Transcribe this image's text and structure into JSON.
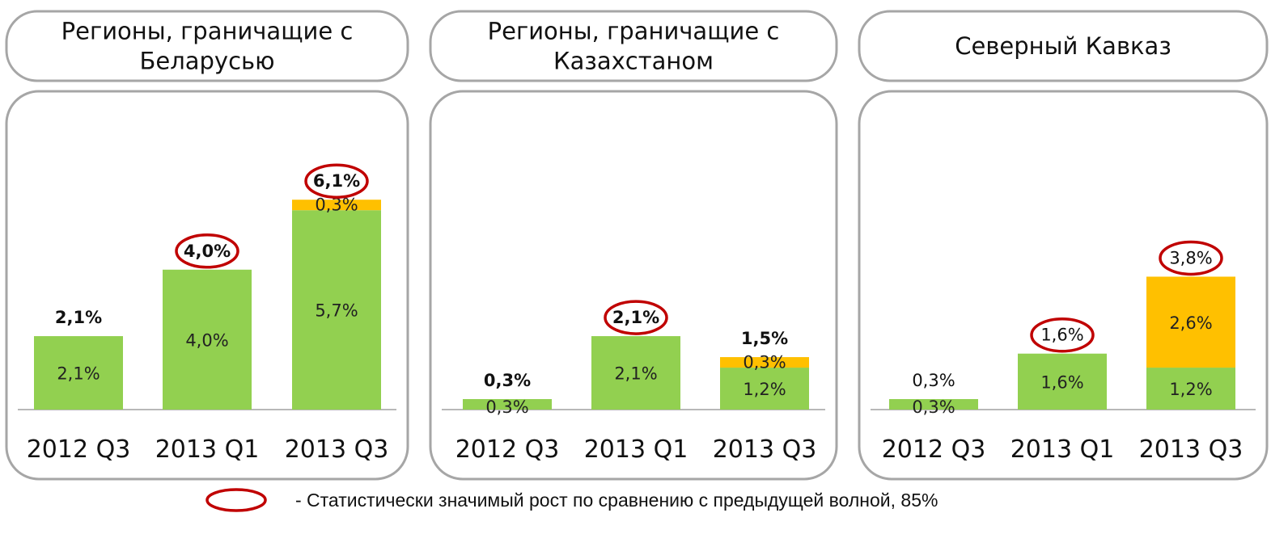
{
  "legend_text": "- Статистически значимый рост по сравнению с предыдущей волной, 85%",
  "colors": {
    "green": "#92D050",
    "orange": "#FFC000",
    "circle": "#C00000",
    "frame": "#A6A6A6"
  },
  "chart_data": [
    {
      "type": "bar",
      "stacked": true,
      "title_lines": [
        "Регионы, граничащие с",
        "Беларусью"
      ],
      "categories": [
        "2012 Q3",
        "2013 Q1",
        "2013 Q3"
      ],
      "ylim": [
        0,
        7
      ],
      "series": [
        {
          "color": "green",
          "values": [
            2.1,
            4.0,
            5.7
          ],
          "labels": [
            "2,1%",
            "4,0%",
            "5,7%"
          ]
        },
        {
          "color": "orange",
          "values": [
            0,
            0,
            0.3
          ],
          "labels": [
            "",
            "",
            "0,3%"
          ]
        }
      ],
      "totals": [
        "2,1%",
        "4,0%",
        "6,1%"
      ],
      "totals_bold": [
        true,
        true,
        true
      ],
      "significant": [
        false,
        true,
        true
      ]
    },
    {
      "type": "bar",
      "stacked": true,
      "title_lines": [
        "Регионы, граничащие с",
        "Казахстаном"
      ],
      "categories": [
        "2012 Q3",
        "2013 Q1",
        "2013 Q3"
      ],
      "ylim": [
        0,
        7
      ],
      "series": [
        {
          "color": "green",
          "values": [
            0.3,
            2.1,
            1.2
          ],
          "labels": [
            "0,3%",
            "2,1%",
            "1,2%"
          ]
        },
        {
          "color": "orange",
          "values": [
            0,
            0,
            0.3
          ],
          "labels": [
            "",
            "",
            "0,3%"
          ]
        }
      ],
      "totals": [
        "0,3%",
        "2,1%",
        "1,5%"
      ],
      "totals_bold": [
        true,
        true,
        true
      ],
      "significant": [
        false,
        true,
        false
      ]
    },
    {
      "type": "bar",
      "stacked": true,
      "title_lines": [
        "Северный Кавказ"
      ],
      "categories": [
        "2012 Q3",
        "2013 Q1",
        "2013 Q3"
      ],
      "ylim": [
        0,
        7
      ],
      "series": [
        {
          "color": "green",
          "values": [
            0.3,
            1.6,
            1.2
          ],
          "labels": [
            "0,3%",
            "1,6%",
            "1,2%"
          ]
        },
        {
          "color": "orange",
          "values": [
            0,
            0,
            2.6
          ],
          "labels": [
            "",
            "",
            "2,6%"
          ]
        }
      ],
      "totals": [
        "0,3%",
        "1,6%",
        "3,8%"
      ],
      "totals_bold": [
        false,
        false,
        false
      ],
      "significant": [
        false,
        true,
        true
      ]
    }
  ]
}
